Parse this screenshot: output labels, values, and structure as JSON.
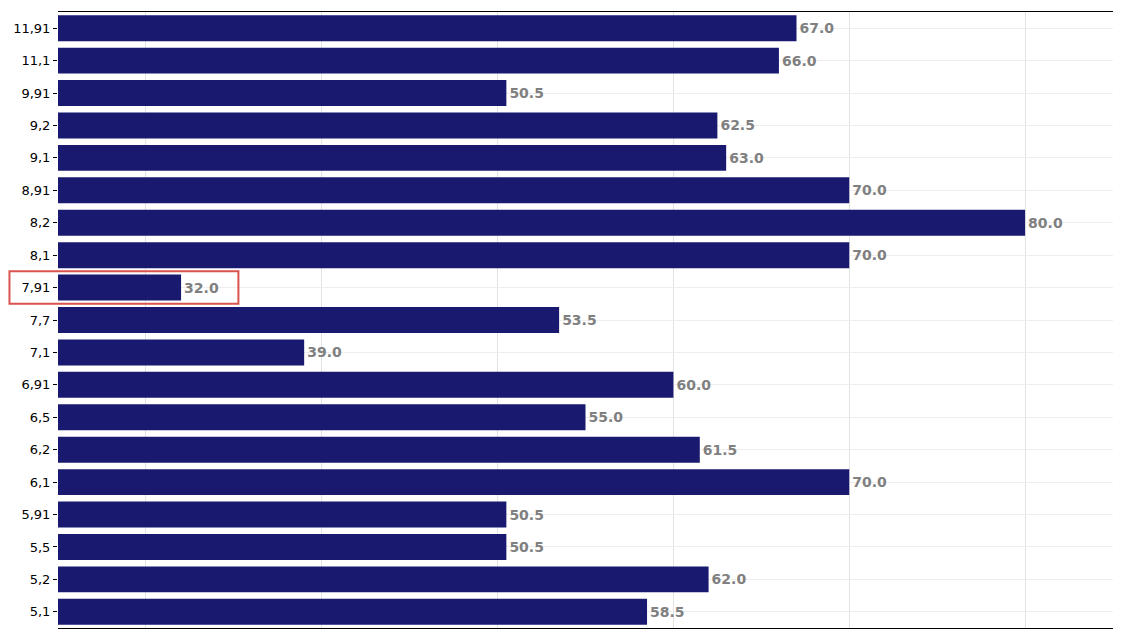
{
  "chart_data": {
    "type": "bar",
    "orientation": "horizontal",
    "categories": [
      "5,1",
      "5,2",
      "5,5",
      "5,91",
      "6,1",
      "6,2",
      "6,5",
      "6,91",
      "7,1",
      "7,7",
      "7,91",
      "8,1",
      "8,2",
      "8,91",
      "9,1",
      "9,2",
      "9,91",
      "11,1",
      "11,91"
    ],
    "values": [
      58.5,
      62.0,
      50.5,
      50.5,
      70.0,
      61.5,
      55.0,
      60.0,
      39.0,
      53.5,
      32.0,
      70.0,
      80.0,
      70.0,
      63.0,
      62.5,
      50.5,
      66.0,
      67.0
    ],
    "value_labels": [
      "58.5",
      "62.0",
      "50.5",
      "50.5",
      "70.0",
      "61.5",
      "55.0",
      "60.0",
      "39.0",
      "53.5",
      "32.0",
      "70.0",
      "80.0",
      "70.0",
      "63.0",
      "62.5",
      "50.5",
      "66.0",
      "67.0"
    ],
    "color": "#191970",
    "xlim": [
      25,
      85
    ],
    "xticks": [
      30,
      40,
      50,
      60,
      70,
      80
    ],
    "grid": true,
    "data_labels": true,
    "tick_labels": "y"
  }
}
